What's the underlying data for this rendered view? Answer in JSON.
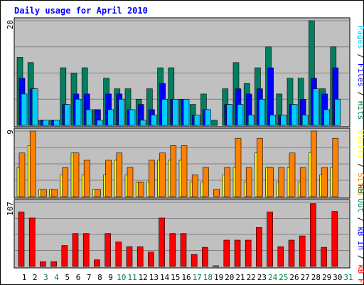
{
  "title": "Daily usage for April 2010",
  "right_labels": {
    "top": [
      {
        "text": "Pages",
        "color": "#00ccff"
      },
      {
        "text": " / ",
        "color": "#000000"
      },
      {
        "text": "Files",
        "color": "#0000ff"
      },
      {
        "text": " / ",
        "color": "#000000"
      },
      {
        "text": "Hits",
        "color": "#008040"
      }
    ],
    "mid": [
      {
        "text": "Visits",
        "color": "#ffff00"
      },
      {
        "text": " / ",
        "color": "#000000"
      },
      {
        "text": "Sites",
        "color": "#ff8000"
      }
    ],
    "bottom": [
      {
        "text": "kB Out",
        "color": "#008040"
      },
      {
        "text": " / ",
        "color": "#000000"
      },
      {
        "text": "kB In",
        "color": "#0000ff"
      },
      {
        "text": " / ",
        "color": "#000000"
      },
      {
        "text": "kB F",
        "color": "#ff0000"
      }
    ]
  },
  "colors": {
    "background": "#ffffff",
    "frame": "#000000",
    "panel_bg": "#c0c0c0",
    "gridline": "#808080",
    "title": "#0000ff",
    "weekday_label": "#000000",
    "weekend_label": "#008040",
    "hits": "#008060",
    "files": "#0000ff",
    "pages": "#00ccff",
    "sites": "#ff8000",
    "visits": "#ffff00",
    "kbf": "#ff0000"
  },
  "chart_data": [
    {
      "type": "bar",
      "panel": "top",
      "ylabel_max": "20",
      "ylim": [
        0,
        20
      ],
      "grid": true,
      "categories": [
        "1",
        "2",
        "3",
        "4",
        "5",
        "6",
        "7",
        "8",
        "9",
        "10",
        "11",
        "12",
        "13",
        "14",
        "15",
        "16",
        "17",
        "18",
        "19",
        "20",
        "21",
        "22",
        "23",
        "24",
        "25",
        "26",
        "27",
        "28",
        "29",
        "30",
        "31"
      ],
      "series": [
        {
          "name": "Hits",
          "values": [
            13,
            12,
            1,
            1,
            11,
            10,
            11,
            3,
            9,
            7,
            7,
            5,
            7,
            11,
            11,
            5,
            4,
            6,
            1,
            7,
            12,
            8,
            11,
            15,
            6,
            9,
            9,
            20,
            7,
            15,
            0
          ]
        },
        {
          "name": "Files",
          "values": [
            9,
            7,
            1,
            1,
            4,
            6,
            6,
            3,
            6,
            6,
            3,
            4,
            3,
            8,
            5,
            5,
            2,
            3,
            0,
            4,
            7,
            6,
            7,
            11,
            2,
            4,
            5,
            9,
            6,
            11,
            0
          ]
        },
        {
          "name": "Pages",
          "values": [
            6,
            7,
            1,
            1,
            4,
            5,
            3,
            1,
            3,
            5,
            3,
            1,
            2,
            5,
            5,
            5,
            2,
            3,
            0,
            4,
            4,
            2,
            5,
            2,
            2,
            4,
            2,
            7,
            3,
            5,
            0
          ]
        }
      ]
    },
    {
      "type": "bar",
      "panel": "middle",
      "ylabel_max": "9",
      "ylim": [
        0,
        9
      ],
      "grid": true,
      "categories": [
        "1",
        "2",
        "3",
        "4",
        "5",
        "6",
        "7",
        "8",
        "9",
        "10",
        "11",
        "12",
        "13",
        "14",
        "15",
        "16",
        "17",
        "18",
        "19",
        "20",
        "21",
        "22",
        "23",
        "24",
        "25",
        "26",
        "27",
        "28",
        "29",
        "30",
        "31"
      ],
      "series": [
        {
          "name": "Visits",
          "values": [
            4,
            7,
            1,
            1,
            3,
            6,
            3,
            1,
            3,
            5,
            3,
            2,
            2,
            5,
            5,
            5,
            2,
            2,
            0,
            3,
            4,
            2,
            6,
            4,
            2,
            4,
            2,
            6,
            3,
            4,
            0
          ]
        },
        {
          "name": "Sites",
          "values": [
            6,
            9,
            1,
            1,
            4,
            6,
            5,
            1,
            5,
            6,
            4,
            2,
            5,
            6,
            7,
            7,
            3,
            4,
            1,
            4,
            8,
            4,
            8,
            4,
            4,
            6,
            4,
            9,
            4,
            8,
            0
          ]
        }
      ]
    },
    {
      "type": "bar",
      "panel": "bottom",
      "ylabel_max": "107",
      "ylim": [
        0,
        107
      ],
      "grid": true,
      "categories": [
        "1",
        "2",
        "3",
        "4",
        "5",
        "6",
        "7",
        "8",
        "9",
        "10",
        "11",
        "12",
        "13",
        "14",
        "15",
        "16",
        "17",
        "18",
        "19",
        "20",
        "21",
        "22",
        "23",
        "24",
        "25",
        "26",
        "27",
        "28",
        "29",
        "30",
        "31"
      ],
      "series": [
        {
          "name": "kB F",
          "values": [
            91,
            81,
            8,
            8,
            35,
            55,
            55,
            11,
            55,
            41,
            33,
            33,
            24,
            81,
            55,
            55,
            20,
            32,
            1,
            44,
            44,
            44,
            65,
            91,
            33,
            44,
            51,
            105,
            32,
            92,
            0
          ]
        }
      ]
    }
  ],
  "x_axis": {
    "labels": [
      "1",
      "2",
      "3",
      "4",
      "5",
      "6",
      "7",
      "8",
      "9",
      "10",
      "11",
      "12",
      "13",
      "14",
      "15",
      "16",
      "17",
      "18",
      "19",
      "20",
      "21",
      "22",
      "23",
      "24",
      "25",
      "26",
      "27",
      "28",
      "29",
      "30",
      "31"
    ],
    "weekend": [
      "3",
      "4",
      "10",
      "11",
      "17",
      "18",
      "24",
      "25",
      "31"
    ]
  }
}
